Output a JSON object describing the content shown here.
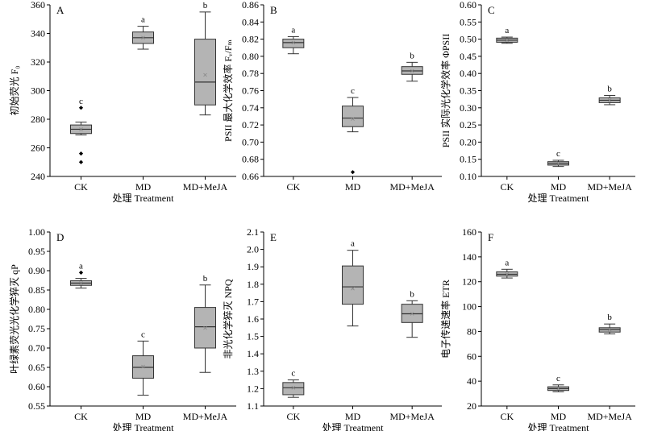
{
  "colors": {
    "box_fill": "#b4b4b4",
    "box_stroke": "#333333",
    "outlier": "#000000",
    "mean_marker": "#888888"
  },
  "chart_data": [
    {
      "type": "box",
      "panel": "A",
      "categories": [
        "CK",
        "MD",
        "MD+MeJA"
      ],
      "xlabel": "处理 Treatment",
      "ylabel": "初始荧光 F₀",
      "ylim": [
        240,
        360
      ],
      "yticks": [
        "240",
        "260",
        "280",
        "300",
        "320",
        "340",
        "360"
      ],
      "boxes": [
        {
          "category": "CK",
          "min": 269,
          "q1": 270,
          "median": 273,
          "q3": 276,
          "max": 278,
          "mean": 273,
          "outliers": [
            288,
            256,
            250
          ],
          "letter": "c"
        },
        {
          "category": "MD",
          "min": 329,
          "q1": 333,
          "median": 337,
          "q3": 341,
          "max": 345,
          "mean": 337,
          "outliers": [],
          "letter": "a"
        },
        {
          "category": "MD+MeJA",
          "min": 283,
          "q1": 290,
          "median": 306,
          "q3": 336,
          "max": 355,
          "mean": 311,
          "outliers": [],
          "letter": "b"
        }
      ]
    },
    {
      "type": "box",
      "panel": "B",
      "categories": [
        "CK",
        "MD",
        "MD+MeJA"
      ],
      "xlabel": "",
      "ylabel": "PSII 最大化学效率 Fᵥ/Fₘ",
      "ylim": [
        0.66,
        0.86
      ],
      "yticks": [
        "0.66",
        "0.68",
        "0.70",
        "0.72",
        "0.74",
        "0.76",
        "0.78",
        "0.80",
        "0.82",
        "0.84",
        "0.86"
      ],
      "boxes": [
        {
          "category": "CK",
          "min": 0.803,
          "q1": 0.81,
          "median": 0.816,
          "q3": 0.82,
          "max": 0.823,
          "mean": 0.816,
          "outliers": [],
          "letter": "a"
        },
        {
          "category": "MD",
          "min": 0.712,
          "q1": 0.718,
          "median": 0.728,
          "q3": 0.742,
          "max": 0.752,
          "mean": 0.727,
          "outliers": [
            0.665
          ],
          "letter": "c"
        },
        {
          "category": "MD+MeJA",
          "min": 0.771,
          "q1": 0.779,
          "median": 0.783,
          "q3": 0.788,
          "max": 0.793,
          "mean": 0.783,
          "outliers": [],
          "letter": "b"
        }
      ]
    },
    {
      "type": "box",
      "panel": "C",
      "categories": [
        "CK",
        "MD",
        "MD+MeJA"
      ],
      "xlabel": "处理 Treatment",
      "ylabel": "PSII 实际光化学效率 ΦPSII",
      "ylim": [
        0.1,
        0.6
      ],
      "yticks": [
        "0.10",
        "0.15",
        "0.20",
        "0.25",
        "0.30",
        "0.35",
        "0.40",
        "0.45",
        "0.50",
        "0.55",
        "0.60"
      ],
      "boxes": [
        {
          "category": "CK",
          "min": 0.488,
          "q1": 0.491,
          "median": 0.497,
          "q3": 0.503,
          "max": 0.506,
          "mean": 0.497,
          "outliers": [],
          "letter": "a"
        },
        {
          "category": "MD",
          "min": 0.129,
          "q1": 0.133,
          "median": 0.138,
          "q3": 0.143,
          "max": 0.147,
          "mean": 0.138,
          "outliers": [],
          "letter": "c"
        },
        {
          "category": "MD+MeJA",
          "min": 0.309,
          "q1": 0.315,
          "median": 0.322,
          "q3": 0.329,
          "max": 0.336,
          "mean": 0.322,
          "outliers": [],
          "letter": "b"
        }
      ]
    },
    {
      "type": "box",
      "panel": "D",
      "categories": [
        "CK",
        "MD",
        "MD+MeJA"
      ],
      "xlabel": "处理 Treatment",
      "ylabel": "叶绿素荧光光化学猝灭 qP",
      "ylim": [
        0.55,
        1.0
      ],
      "yticks": [
        "0.55",
        "0.60",
        "0.65",
        "0.70",
        "0.75",
        "0.80",
        "0.85",
        "0.90",
        "0.95",
        "1.00"
      ],
      "boxes": [
        {
          "category": "CK",
          "min": 0.855,
          "q1": 0.862,
          "median": 0.868,
          "q3": 0.874,
          "max": 0.88,
          "mean": 0.868,
          "outliers": [
            0.895
          ],
          "letter": "a"
        },
        {
          "category": "MD",
          "min": 0.578,
          "q1": 0.622,
          "median": 0.65,
          "q3": 0.68,
          "max": 0.718,
          "mean": 0.652,
          "outliers": [],
          "letter": "c"
        },
        {
          "category": "MD+MeJA",
          "min": 0.637,
          "q1": 0.7,
          "median": 0.755,
          "q3": 0.805,
          "max": 0.863,
          "mean": 0.752,
          "outliers": [],
          "letter": "b"
        }
      ]
    },
    {
      "type": "box",
      "panel": "E",
      "categories": [
        "CK",
        "MD",
        "MD+MeJA"
      ],
      "xlabel": "处理 Treatment",
      "ylabel": "非光化学猝灭 NPQ",
      "ylim": [
        1.1,
        2.1
      ],
      "yticks": [
        "1.1",
        "1.2",
        "1.3",
        "1.4",
        "1.5",
        "1.6",
        "1.7",
        "1.8",
        "1.9",
        "2.0",
        "2.1"
      ],
      "boxes": [
        {
          "category": "CK",
          "min": 1.15,
          "q1": 1.165,
          "median": 1.205,
          "q3": 1.235,
          "max": 1.25,
          "mean": 1.205,
          "outliers": [],
          "letter": "c"
        },
        {
          "category": "MD",
          "min": 1.56,
          "q1": 1.685,
          "median": 1.785,
          "q3": 1.905,
          "max": 1.995,
          "mean": 1.775,
          "outliers": [],
          "letter": "a"
        },
        {
          "category": "MD+MeJA",
          "min": 1.495,
          "q1": 1.58,
          "median": 1.63,
          "q3": 1.685,
          "max": 1.705,
          "mean": 1.63,
          "outliers": [],
          "letter": "b"
        }
      ]
    },
    {
      "type": "box",
      "panel": "F",
      "categories": [
        "CK",
        "MD",
        "MD+MeJA"
      ],
      "xlabel": "处理 Treatment",
      "ylabel": "电子传递速率 ETR",
      "ylim": [
        20,
        160
      ],
      "yticks": [
        "20",
        "40",
        "60",
        "80",
        "100",
        "120",
        "140",
        "160"
      ],
      "boxes": [
        {
          "category": "CK",
          "min": 123,
          "q1": 124.5,
          "median": 126,
          "q3": 128,
          "max": 130,
          "mean": 126,
          "outliers": [],
          "letter": "a"
        },
        {
          "category": "MD",
          "min": 31.5,
          "q1": 32.5,
          "median": 34,
          "q3": 35.5,
          "max": 37,
          "mean": 34,
          "outliers": [],
          "letter": "c"
        },
        {
          "category": "MD+MeJA",
          "min": 78,
          "q1": 79.5,
          "median": 81.5,
          "q3": 83,
          "max": 86,
          "mean": 81.5,
          "outliers": [],
          "letter": "b"
        }
      ]
    }
  ]
}
